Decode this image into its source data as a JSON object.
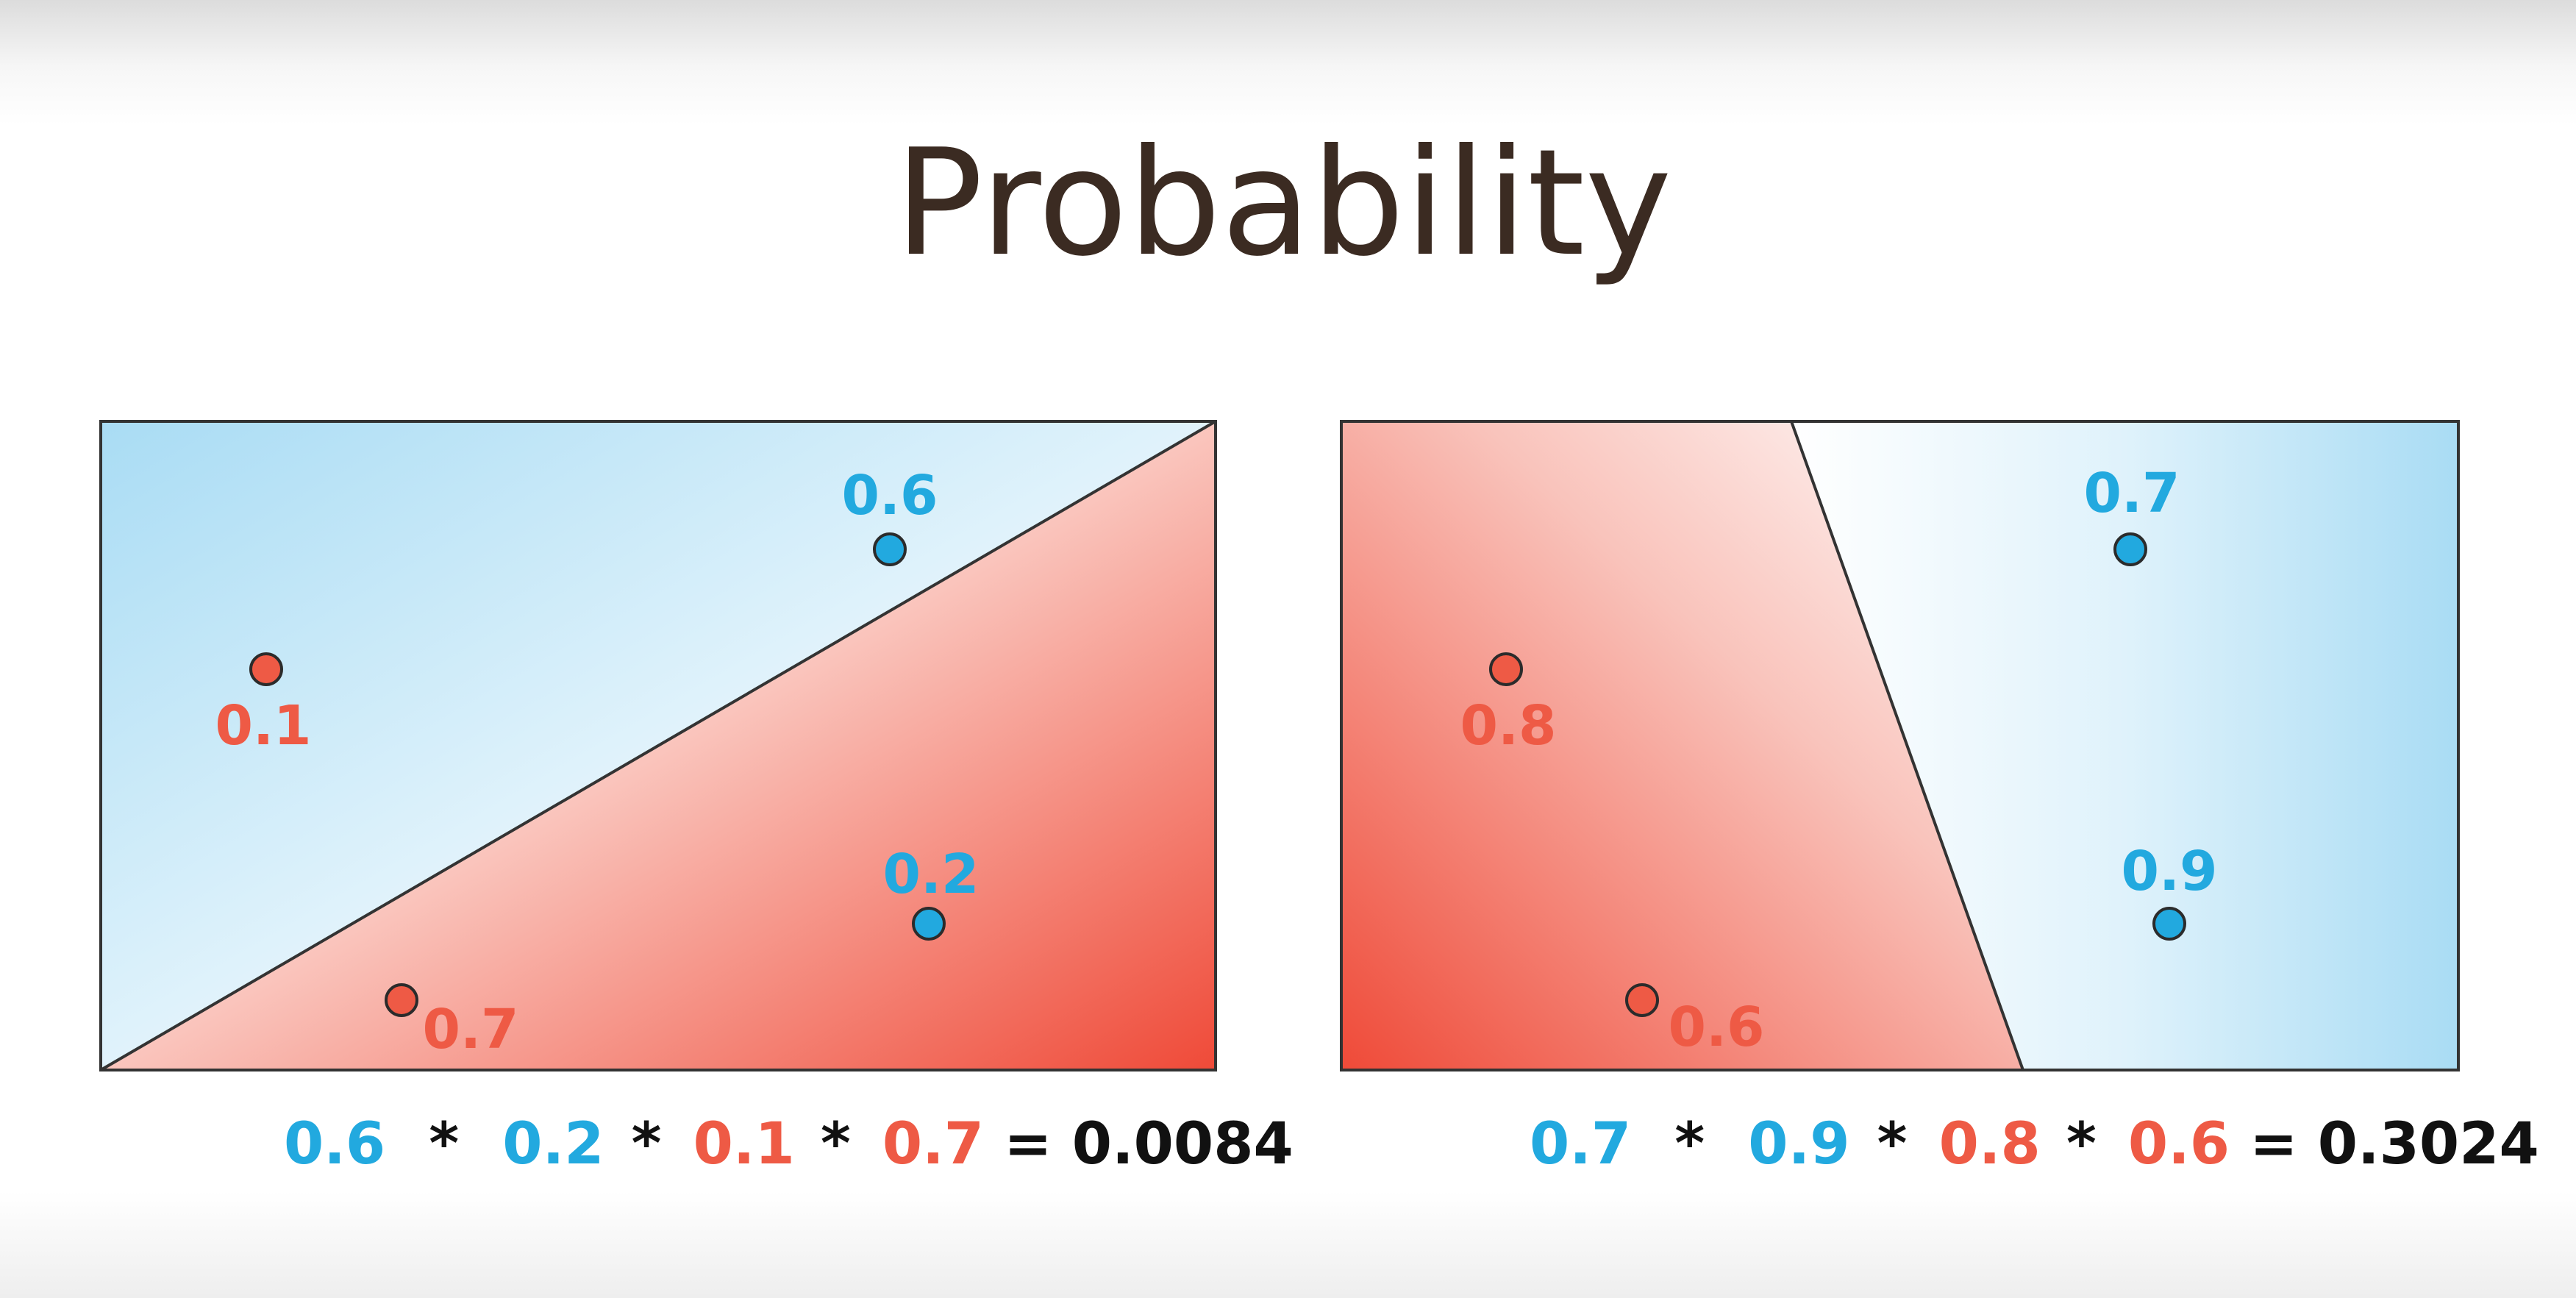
{
  "title": "Probability",
  "colors": {
    "blue": "#22a9df",
    "red": "#ee5a45",
    "blue_region": "#a9dcf4",
    "red_region": "#ef4a38",
    "dark": "#111111",
    "title": "#3b2b22"
  },
  "panels": [
    {
      "points": [
        {
          "label": "0.6",
          "class": "blue"
        },
        {
          "label": "0.2",
          "class": "blue"
        },
        {
          "label": "0.1",
          "class": "red"
        },
        {
          "label": "0.7",
          "class": "red"
        }
      ],
      "equation": {
        "terms": [
          {
            "text": "0.6",
            "class": "blue"
          },
          {
            "text": "*",
            "class": "dark"
          },
          {
            "text": "0.2",
            "class": "blue"
          },
          {
            "text": "*",
            "class": "dark"
          },
          {
            "text": "0.1",
            "class": "red"
          },
          {
            "text": "*",
            "class": "dark"
          },
          {
            "text": "0.7",
            "class": "red"
          },
          {
            "text": "= 0.0084",
            "class": "dark"
          }
        ]
      }
    },
    {
      "points": [
        {
          "label": "0.7",
          "class": "blue"
        },
        {
          "label": "0.9",
          "class": "blue"
        },
        {
          "label": "0.8",
          "class": "red"
        },
        {
          "label": "0.6",
          "class": "red"
        }
      ],
      "equation": {
        "terms": [
          {
            "text": "0.7",
            "class": "blue"
          },
          {
            "text": "*",
            "class": "dark"
          },
          {
            "text": "0.9",
            "class": "blue"
          },
          {
            "text": "*",
            "class": "dark"
          },
          {
            "text": "0.8",
            "class": "red"
          },
          {
            "text": "*",
            "class": "dark"
          },
          {
            "text": "0.6",
            "class": "red"
          },
          {
            "text": "= 0.3024",
            "class": "dark"
          }
        ]
      }
    }
  ]
}
